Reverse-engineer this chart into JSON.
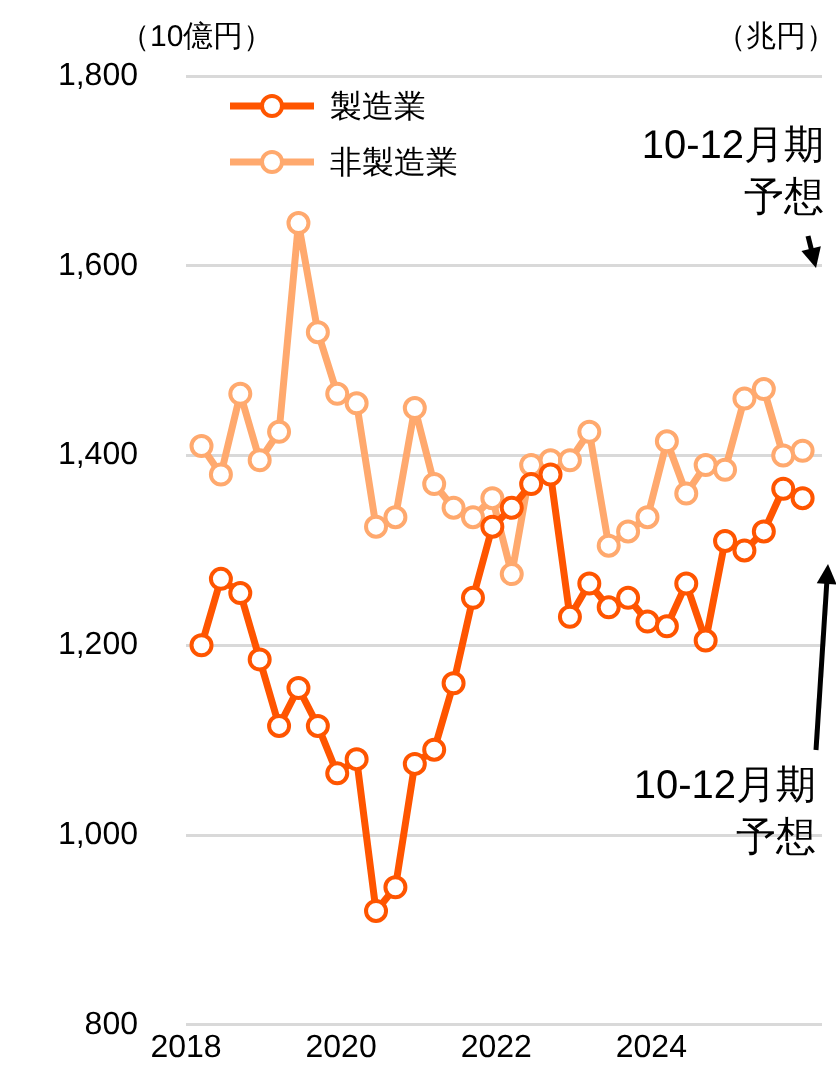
{
  "chart_data": {
    "type": "line",
    "ylabel": "（10億円）",
    "x": [
      2018.2,
      2018.45,
      2018.7,
      2018.95,
      2019.2,
      2019.45,
      2019.7,
      2019.95,
      2020.2,
      2020.45,
      2020.7,
      2020.95,
      2021.2,
      2021.45,
      2021.7,
      2021.95,
      2022.2,
      2022.45,
      2022.7,
      2022.95,
      2023.2,
      2023.45,
      2023.7,
      2023.95,
      2024.2,
      2024.45,
      2024.7,
      2024.95,
      2025.2,
      2025.45,
      2025.7,
      2025.95
    ],
    "series": [
      {
        "name": "製造業",
        "color": "#ff5500",
        "values": [
          1200,
          1270,
          1255,
          1185,
          1115,
          1155,
          1115,
          1065,
          1080,
          920,
          945,
          1075,
          1090,
          1160,
          1250,
          1325,
          1345,
          1370,
          1380,
          1230,
          1265,
          1240,
          1250,
          1225,
          1220,
          1265,
          1205,
          1310,
          1300,
          1320,
          1365,
          1355
        ]
      },
      {
        "name": "非製造業",
        "color": "#ffa96e",
        "values": [
          1410,
          1380,
          1465,
          1395,
          1425,
          1645,
          1530,
          1465,
          1455,
          1325,
          1335,
          1450,
          1370,
          1345,
          1335,
          1355,
          1275,
          1390,
          1395,
          1395,
          1425,
          1305,
          1320,
          1335,
          1415,
          1360,
          1390,
          1385,
          1460,
          1470,
          1400,
          1405
        ]
      }
    ],
    "xlim": [
      2018,
      2026.2
    ],
    "xticks": [
      2018,
      2020,
      2022,
      2024
    ],
    "ylim": [
      800,
      1800
    ],
    "yticks": [
      {
        "value": 800,
        "label": "800"
      },
      {
        "value": 1000,
        "label": "1,000"
      },
      {
        "value": 1200,
        "label": "1,200"
      },
      {
        "value": 1400,
        "label": "1,400"
      },
      {
        "value": 1600,
        "label": "1,600"
      },
      {
        "value": 1800,
        "label": "1,800"
      }
    ],
    "grid": "y",
    "legend": "top left",
    "marker": "circle",
    "line_style": "solid",
    "annotations": [
      "（兆円）",
      "10-12月期予想",
      "10-12月期予想"
    ]
  }
}
